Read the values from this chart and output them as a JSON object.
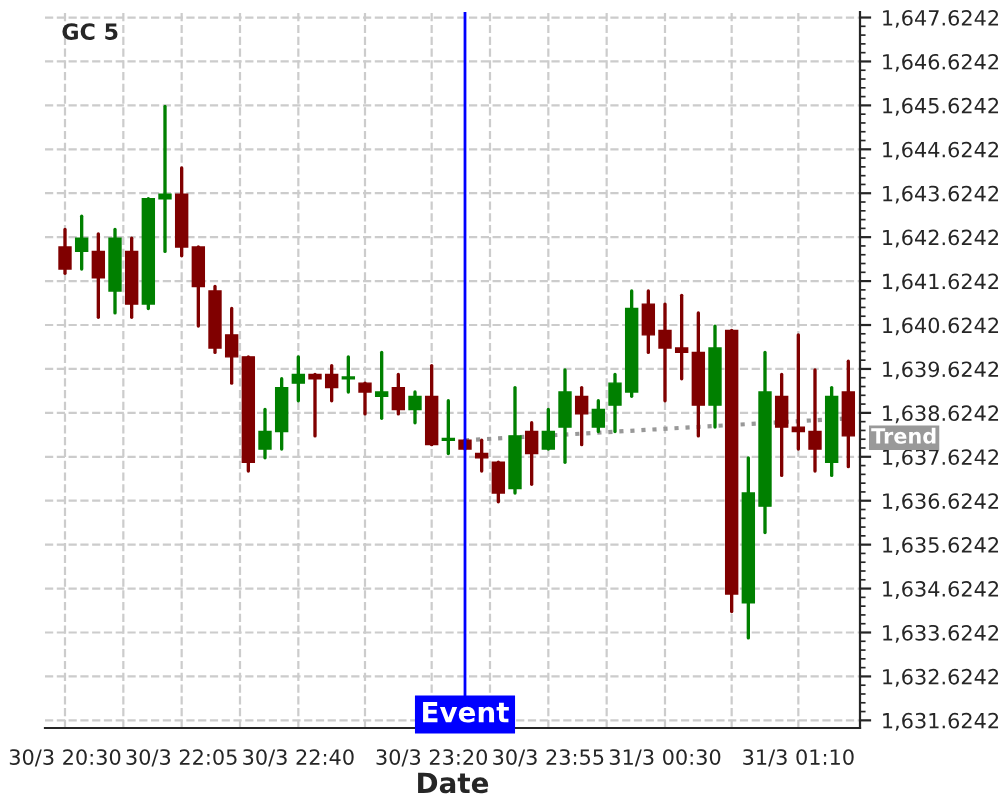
{
  "chart_data": {
    "type": "candlestick",
    "title": "GC 5",
    "xlabel": "Date",
    "categories": [
      "30/3 20:30",
      null,
      null,
      null,
      null,
      null,
      null,
      "30/3 22:05",
      null,
      null,
      null,
      null,
      null,
      null,
      "30/3 22:40",
      null,
      null,
      null,
      null,
      null,
      null,
      null,
      "30/3 23:20",
      null,
      null,
      null,
      null,
      null,
      null,
      "30/3 23:55",
      null,
      null,
      null,
      null,
      null,
      null,
      "31/3 00:30",
      null,
      null,
      null,
      null,
      null,
      null,
      null,
      "31/3 01:10",
      null,
      null,
      null
    ],
    "ohlc": [
      [
        1642.4,
        1642.8,
        1641.8,
        1641.9
      ],
      [
        1642.3,
        1643.1,
        1641.9,
        1642.6
      ],
      [
        1642.3,
        1642.7,
        1640.8,
        1641.7
      ],
      [
        1641.4,
        1642.8,
        1640.9,
        1642.6
      ],
      [
        1642.3,
        1642.6,
        1640.8,
        1641.1
      ],
      [
        1641.1,
        1643.5,
        1641.0,
        1643.5
      ],
      [
        1643.5,
        1645.6,
        1642.3,
        1643.6
      ],
      [
        1643.6,
        1644.2,
        1642.2,
        1642.4
      ],
      [
        1642.4,
        1642.4,
        1640.6,
        1641.5
      ],
      [
        1641.4,
        1641.5,
        1640.0,
        1640.1
      ],
      [
        1640.4,
        1641.0,
        1639.3,
        1639.9
      ],
      [
        1639.9,
        1639.9,
        1637.3,
        1637.5
      ],
      [
        1637.8,
        1638.7,
        1637.6,
        1638.2
      ],
      [
        1638.2,
        1639.4,
        1637.8,
        1639.2
      ],
      [
        1639.3,
        1639.9,
        1638.9,
        1639.5
      ],
      [
        1639.5,
        1639.5,
        1638.1,
        1639.4
      ],
      [
        1639.5,
        1639.7,
        1638.9,
        1639.2
      ],
      [
        1639.4,
        1639.9,
        1639.1,
        1639.4
      ],
      [
        1639.3,
        1639.3,
        1638.6,
        1639.1
      ],
      [
        1639.0,
        1640.0,
        1638.5,
        1639.1
      ],
      [
        1639.2,
        1639.5,
        1638.6,
        1638.7
      ],
      [
        1638.7,
        1639.1,
        1638.4,
        1639.0
      ],
      [
        1639.0,
        1639.7,
        1637.9,
        1637.9
      ],
      [
        1638.0,
        1638.9,
        1637.7,
        1638.0
      ],
      [
        1638.0,
        1638.0,
        1637.8,
        1637.8
      ],
      [
        1637.7,
        1638.0,
        1637.3,
        1637.6
      ],
      [
        1637.5,
        1637.5,
        1636.6,
        1636.8
      ],
      [
        1636.9,
        1639.2,
        1636.8,
        1638.1
      ],
      [
        1638.2,
        1638.4,
        1637.0,
        1637.7
      ],
      [
        1637.8,
        1638.7,
        1637.8,
        1638.2
      ],
      [
        1638.3,
        1639.6,
        1637.5,
        1639.1
      ],
      [
        1639.0,
        1639.2,
        1637.9,
        1638.6
      ],
      [
        1638.3,
        1638.9,
        1638.2,
        1638.7
      ],
      [
        1638.8,
        1639.5,
        1638.2,
        1639.3
      ],
      [
        1639.1,
        1641.4,
        1639.0,
        1641.0
      ],
      [
        1641.1,
        1641.4,
        1640.0,
        1640.4
      ],
      [
        1640.5,
        1641.1,
        1638.9,
        1640.1
      ],
      [
        1640.1,
        1641.3,
        1639.4,
        1640.0
      ],
      [
        1640.0,
        1640.9,
        1638.1,
        1638.8
      ],
      [
        1638.8,
        1640.6,
        1638.3,
        1640.1
      ],
      [
        1640.5,
        1640.5,
        1634.1,
        1634.5
      ],
      [
        1634.3,
        1637.6,
        1633.5,
        1636.8
      ],
      [
        1636.5,
        1640.0,
        1635.9,
        1639.1
      ],
      [
        1639.0,
        1639.5,
        1637.2,
        1638.3
      ],
      [
        1638.3,
        1640.4,
        1637.8,
        1638.2
      ],
      [
        1638.2,
        1639.6,
        1637.3,
        1637.8
      ],
      [
        1637.5,
        1639.2,
        1637.2,
        1639.0
      ],
      [
        1639.1,
        1639.8,
        1637.4,
        1638.1
      ]
    ],
    "colors": [
      "#800000",
      "#008000",
      "#800000",
      "#008000",
      "#800000",
      "#008000",
      "#008000",
      "#800000",
      "#800000",
      "#800000",
      "#800000",
      "#800000",
      "#008000",
      "#008000",
      "#008000",
      "#800000",
      "#800000",
      "#008000",
      "#800000",
      "#008000",
      "#800000",
      "#008000",
      "#800000",
      "#008000",
      "#800000",
      "#800000",
      "#800000",
      "#008000",
      "#800000",
      "#008000",
      "#008000",
      "#800000",
      "#008000",
      "#008000",
      "#008000",
      "#800000",
      "#800000",
      "#800000",
      "#800000",
      "#008000",
      "#800000",
      "#008000",
      "#008000",
      "#800000",
      "#800000",
      "#800000",
      "#008000",
      "#800000"
    ],
    "series": [
      {
        "type": "line",
        "name": "Trend",
        "values": [
          null,
          null,
          null,
          null,
          null,
          null,
          null,
          null,
          null,
          null,
          null,
          null,
          null,
          null,
          null,
          null,
          null,
          null,
          null,
          null,
          null,
          null,
          null,
          null,
          1638.0,
          null,
          null,
          null,
          null,
          null,
          null,
          null,
          null,
          null,
          null,
          null,
          null,
          null,
          null,
          null,
          null,
          null,
          null,
          null,
          null,
          null,
          null,
          1638.5
        ],
        "color": "#999999",
        "line_style": "dotted"
      }
    ],
    "annotations": [
      "Event"
    ],
    "ylim": [
      1631.45,
      1647.75
    ],
    "yticks": [
      {
        "value": 1631.6242,
        "label": "1,631.6242"
      },
      {
        "value": 1632.6242,
        "label": "1,632.6242"
      },
      {
        "value": 1633.6242,
        "label": "1,633.6242"
      },
      {
        "value": 1634.6242,
        "label": "1,634.6242"
      },
      {
        "value": 1635.6242,
        "label": "1,635.6242"
      },
      {
        "value": 1636.6242,
        "label": "1,636.6242"
      },
      {
        "value": 1637.6242,
        "label": "1,637.6242"
      },
      {
        "value": 1638.6242,
        "label": "1,638.6242"
      },
      {
        "value": 1639.6242,
        "label": "1,639.6242"
      },
      {
        "value": 1640.6242,
        "label": "1,640.6242"
      },
      {
        "value": 1641.6242,
        "label": "1,641.6242"
      },
      {
        "value": 1642.6242,
        "label": "1,642.6242"
      },
      {
        "value": 1643.6242,
        "label": "1,643.6242"
      },
      {
        "value": 1644.6242,
        "label": "1,644.6242"
      },
      {
        "value": 1645.6242,
        "label": "1,645.6242"
      },
      {
        "value": 1646.6242,
        "label": "1,646.6242"
      },
      {
        "value": 1647.6242,
        "label": "1,647.6242"
      }
    ],
    "grid": true
  }
}
